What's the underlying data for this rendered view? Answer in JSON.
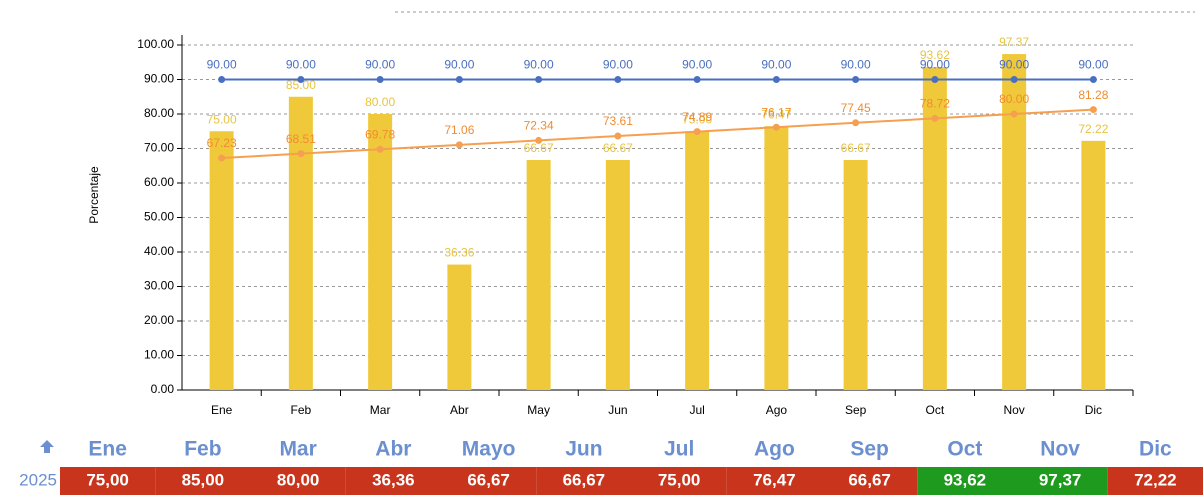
{
  "chart_data": {
    "type": "bar",
    "y_label": "Porcentaje",
    "categories": [
      "Ene",
      "Feb",
      "Mar",
      "Abr",
      "May",
      "Jun",
      "Jul",
      "Ago",
      "Sep",
      "Oct",
      "Nov",
      "Dic"
    ],
    "series": [
      {
        "type": "bar",
        "color": "#f0c93a",
        "label_color": "#e8c440",
        "values": [
          75,
          85,
          80,
          36.36,
          66.67,
          66.67,
          75,
          76.47,
          66.67,
          93.62,
          97.37,
          72.22
        ],
        "value_labels": [
          "75.00",
          "85.00",
          "80.00",
          "36.36",
          "66.67",
          "66.67",
          "75.00",
          "76.47",
          "66.67",
          "93.62",
          "97.37",
          "72.22"
        ]
      },
      {
        "type": "line",
        "color": "#4a6fc0",
        "label_color": "#4a6fc0",
        "values": [
          90,
          90,
          90,
          90,
          90,
          90,
          90,
          90,
          90,
          90,
          90,
          90
        ],
        "value_labels": [
          "90.00",
          "90.00",
          "90.00",
          "90.00",
          "90.00",
          "90.00",
          "90.00",
          "90.00",
          "90.00",
          "90.00",
          "90.00",
          "90.00"
        ]
      },
      {
        "type": "line",
        "color": "#f5a050",
        "label_color": "#f08c30",
        "values": [
          67.23,
          68.51,
          69.78,
          71.06,
          72.34,
          73.61,
          74.89,
          76.17,
          77.45,
          78.72,
          80,
          81.28
        ],
        "value_labels": [
          "67.23",
          "68.51",
          "69.78",
          "71.06",
          "72.34",
          "73.61",
          "74.89",
          "76.17",
          "77.45",
          "78.72",
          "80.00",
          "81.28"
        ]
      }
    ],
    "ylim": [
      0,
      100
    ],
    "yticks": [
      {
        "value": 0,
        "label": "0.00"
      },
      {
        "value": 10,
        "label": "10.00"
      },
      {
        "value": 20,
        "label": "20.00"
      },
      {
        "value": 30,
        "label": "30.00"
      },
      {
        "value": 40,
        "label": "40.00"
      },
      {
        "value": 50,
        "label": "50.00"
      },
      {
        "value": 60,
        "label": "60.00"
      },
      {
        "value": 70,
        "label": "70.00"
      },
      {
        "value": 80,
        "label": "80.00"
      },
      {
        "value": 90,
        "label": "90.00"
      },
      {
        "value": 100,
        "label": "100.00"
      }
    ],
    "grid": true
  },
  "table": {
    "header": [
      "Ene",
      "Feb",
      "Mar",
      "Abr",
      "Mayo",
      "Jun",
      "Jul",
      "Ago",
      "Sep",
      "Oct",
      "Nov",
      "Dic"
    ],
    "row_label": "2025",
    "cells": [
      "75,00",
      "85,00",
      "80,00",
      "36,36",
      "66,67",
      "66,67",
      "75,00",
      "76,47",
      "66,67",
      "93,62",
      "97,37",
      "72,22"
    ],
    "cell_colors": [
      "#c8341c",
      "#c8341c",
      "#c8341c",
      "#c8341c",
      "#c8341c",
      "#c8341c",
      "#c8341c",
      "#c8341c",
      "#c8341c",
      "#1e9a1e",
      "#1e9a1e",
      "#c8341c"
    ]
  }
}
